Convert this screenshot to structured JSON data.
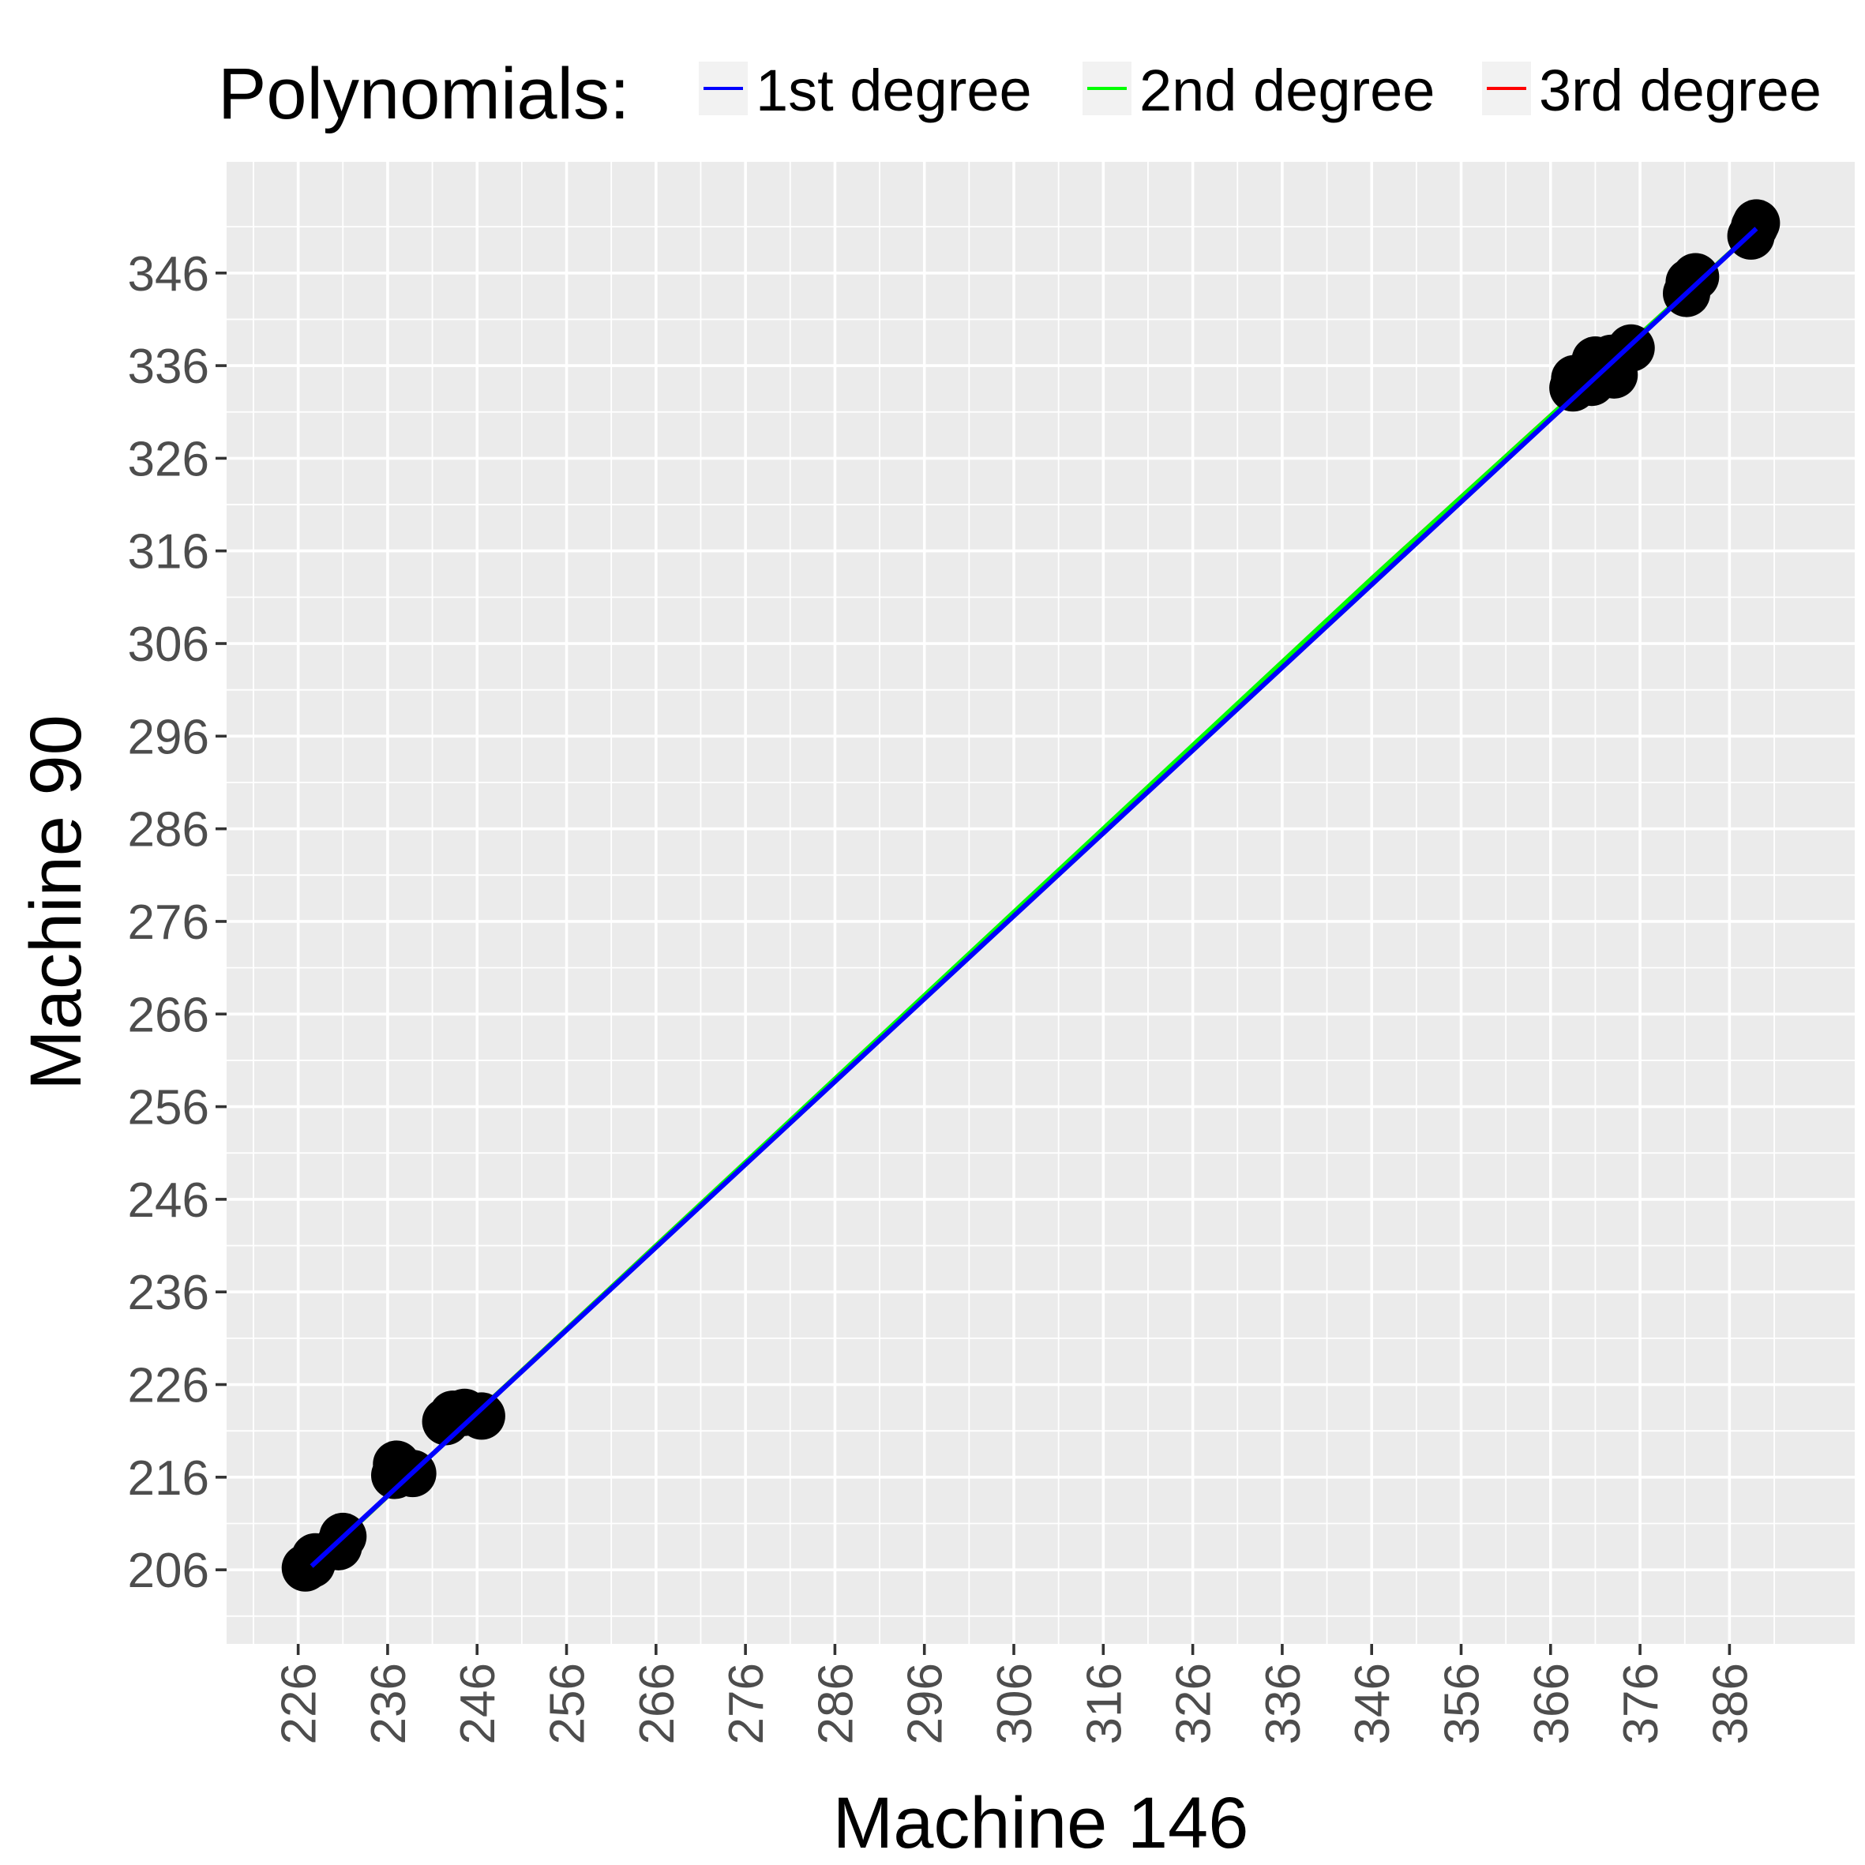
{
  "chart_data": {
    "type": "scatter",
    "xlabel": "Machine 146",
    "ylabel": "Machine 90",
    "xlim": [
      218,
      400
    ],
    "ylim": [
      198,
      358
    ],
    "x_ticks": [
      226,
      236,
      246,
      256,
      266,
      276,
      286,
      296,
      306,
      316,
      326,
      336,
      346,
      356,
      366,
      376,
      386
    ],
    "y_ticks": [
      206,
      216,
      226,
      236,
      246,
      256,
      266,
      276,
      286,
      296,
      306,
      316,
      326,
      336,
      346
    ],
    "grid": true,
    "legend": {
      "title": "Polynomials:",
      "position": "top",
      "entries": [
        {
          "label": "1st degree",
          "color": "#0000ff"
        },
        {
          "label": "2nd degree",
          "color": "#00ff00"
        },
        {
          "label": "3rd degree",
          "color": "#ff0000"
        }
      ]
    },
    "points": [
      {
        "x": 226.8,
        "y": 206.2
      },
      {
        "x": 227.5,
        "y": 206.6
      },
      {
        "x": 227.9,
        "y": 207.4
      },
      {
        "x": 230.5,
        "y": 208.5
      },
      {
        "x": 231.0,
        "y": 209.6
      },
      {
        "x": 236.8,
        "y": 216.2
      },
      {
        "x": 237.0,
        "y": 217.4
      },
      {
        "x": 238.8,
        "y": 216.4
      },
      {
        "x": 242.5,
        "y": 222.0
      },
      {
        "x": 243.3,
        "y": 222.8
      },
      {
        "x": 244.6,
        "y": 223.0
      },
      {
        "x": 246.5,
        "y": 222.6
      },
      {
        "x": 368.5,
        "y": 333.6
      },
      {
        "x": 368.7,
        "y": 334.6
      },
      {
        "x": 370.6,
        "y": 334.2
      },
      {
        "x": 371.0,
        "y": 336.6
      },
      {
        "x": 372.0,
        "y": 335.5
      },
      {
        "x": 372.8,
        "y": 336.8
      },
      {
        "x": 373.1,
        "y": 335.0
      },
      {
        "x": 375.0,
        "y": 337.9
      },
      {
        "x": 381.2,
        "y": 343.8
      },
      {
        "x": 381.5,
        "y": 345.0
      },
      {
        "x": 382.2,
        "y": 345.6
      },
      {
        "x": 388.4,
        "y": 350.0
      },
      {
        "x": 388.8,
        "y": 351.0
      },
      {
        "x": 389.0,
        "y": 351.4
      }
    ],
    "fit_lines": [
      {
        "name": "1st degree",
        "color": "#0000ff",
        "x": [
          227.5,
          389.0
        ],
        "y": [
          206.4,
          350.8
        ]
      },
      {
        "name": "2nd degree",
        "color": "#00ff00",
        "x": [
          227.5,
          266,
          306,
          346,
          389.0
        ],
        "y": [
          206.3,
          241.0,
          277.0,
          313.0,
          350.8
        ]
      },
      {
        "name": "3rd degree",
        "color": "#ff0000",
        "x": [
          227.5,
          266,
          306,
          346,
          389.0
        ],
        "y": [
          206.3,
          241.0,
          276.9,
          313.0,
          350.8
        ]
      }
    ]
  }
}
